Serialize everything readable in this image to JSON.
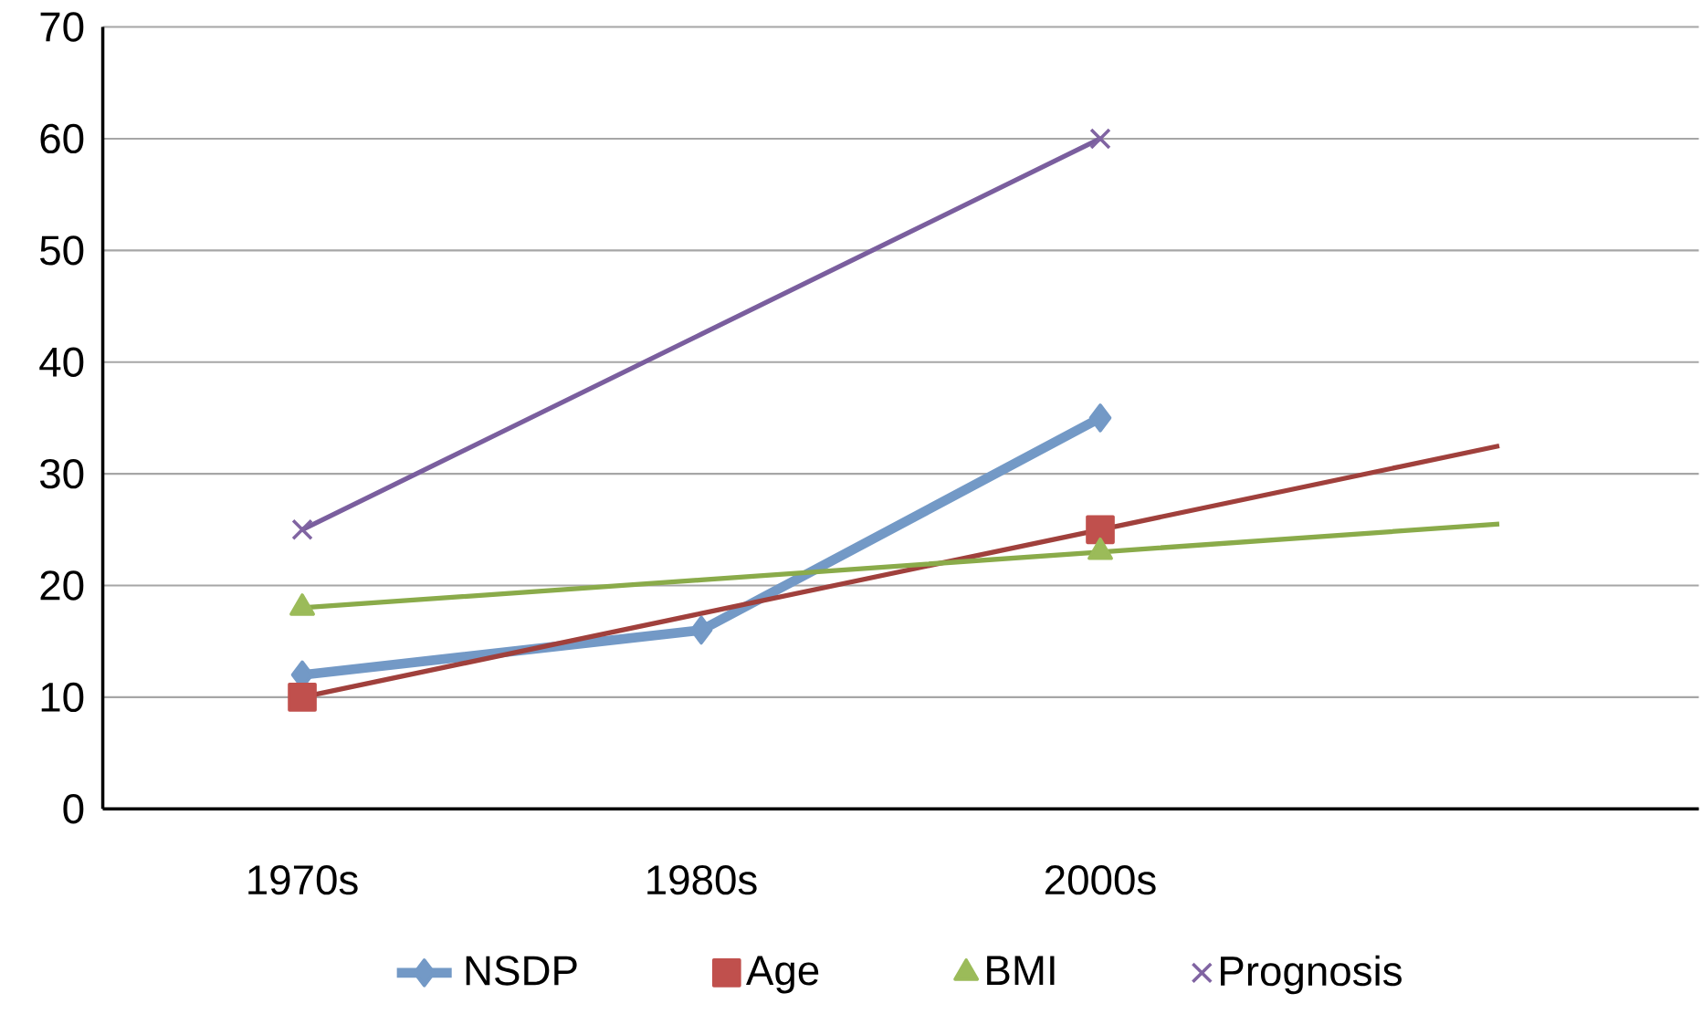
{
  "chart_data": {
    "type": "line",
    "categories": [
      "1970s",
      "1980s",
      "2000s",
      null
    ],
    "ylim": [
      0,
      70
    ],
    "yticks": [
      0,
      10,
      20,
      30,
      40,
      50,
      60,
      70
    ],
    "grid": "y",
    "legend": "bottom",
    "series": [
      {
        "name": "NSDP",
        "color": "#7399c6",
        "values": [
          12,
          16,
          35,
          null
        ],
        "marker": "diamond"
      },
      {
        "name": "Age",
        "type": "scatter",
        "color": "#c0504d",
        "values": [
          10,
          null,
          25,
          null
        ],
        "marker": "square"
      },
      {
        "name": "BMI",
        "type": "scatter",
        "color": "#9bbb59",
        "values": [
          18,
          null,
          23,
          null
        ],
        "marker": "triangle"
      },
      {
        "name": "Prognosis",
        "type": "scatter",
        "color": "#8064a2",
        "values": [
          25,
          null,
          60,
          null
        ],
        "marker": "cross"
      },
      {
        "type": "line",
        "color": "#a0403c",
        "values": [
          10,
          17.5,
          25,
          32.5
        ],
        "marker": "none"
      },
      {
        "type": "line",
        "color": "#8aab4a",
        "values": [
          18,
          20.5,
          23,
          25.5
        ],
        "marker": "none"
      },
      {
        "type": "line",
        "color": "#7a5e9e",
        "values": [
          25,
          42.5,
          60,
          null
        ],
        "marker": "none"
      }
    ]
  }
}
